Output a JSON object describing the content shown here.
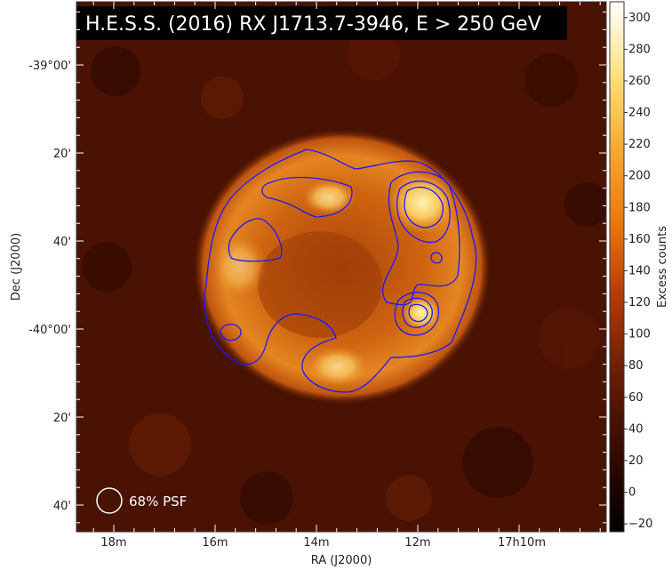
{
  "title": "H.E.S.S. (2016) RX J1713.7-3946, E > 250 GeV",
  "psf_label": "68% PSF",
  "colors": {
    "title_bg": "#000000",
    "contour": "#1a1aff"
  },
  "chart_data": {
    "type": "heatmap",
    "title": "H.E.S.S. (2016) RX J1713.7-3946, E > 250 GeV",
    "xlabel": "RA (J2000)",
    "ylabel": "Dec (J2000)",
    "x_ticks": [
      "18m",
      "16m",
      "14m",
      "12m",
      "17h10m"
    ],
    "y_ticks": [
      "-39°00'",
      "20'",
      "40'",
      "-40°00'",
      "20'",
      "40'"
    ],
    "colorbar": {
      "label": "Excess counts",
      "range": [
        -25,
        310
      ],
      "ticks": [
        -20,
        0,
        20,
        40,
        60,
        80,
        100,
        120,
        140,
        160,
        180,
        200,
        220,
        240,
        260,
        280,
        300
      ]
    },
    "contour_color": "blue",
    "legend": "68% PSF"
  }
}
